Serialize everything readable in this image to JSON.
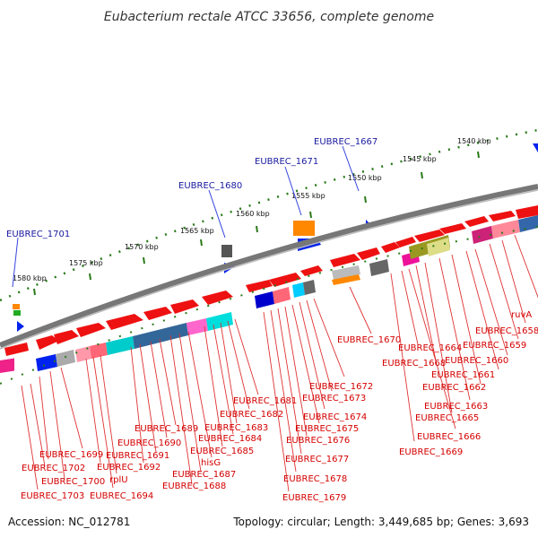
{
  "title": "Eubacterium rectale ATCC 33656, complete genome",
  "accession": "Accession: NC_012781",
  "summary": "Topology: circular; Length: 3,449,685 bp; Genes: 3,693",
  "kbp_ticks": [
    "1540 kbp",
    "1545 kbp",
    "1550 kbp",
    "1555 kbp",
    "1560 kbp",
    "1565 kbp",
    "1570 kbp",
    "1575 kbp",
    "1580 kbp"
  ],
  "top_labels": [
    "EUBREC_1701",
    "EUBREC_1680",
    "EUBREC_1671",
    "EUBREC_1667"
  ],
  "bottom_labels_right": [
    "ruvA",
    "EUBREC_1658",
    "EUBREC_1659",
    "EUBREC_1660",
    "EUBREC_1661",
    "EUBREC_1662",
    "EUBREC_1663",
    "EUBREC_1664",
    "EUBREC_1665",
    "EUBREC_1666",
    "EUBREC_1668",
    "EUBREC_1669",
    "EUBREC_1670"
  ],
  "bottom_labels_mid": [
    "EUBREC_1672",
    "EUBREC_1673",
    "EUBREC_1674",
    "EUBREC_1675",
    "EUBREC_1676",
    "EUBREC_1677",
    "EUBREC_1678",
    "EUBREC_1679",
    "EUBREC_1681",
    "EUBREC_1682",
    "EUBREC_1683",
    "EUBREC_1684",
    "EUBREC_1685",
    "hisG",
    "EUBREC_1687",
    "EUBREC_1688",
    "EUBREC_1689",
    "EUBREC_1690",
    "EUBREC_1691",
    "EUBREC_1692"
  ],
  "bottom_labels_left": [
    "EUBREC_1699",
    "EUBREC_1702",
    "EUBREC_1700",
    "rplU",
    "EUBREC_1694",
    "EUBREC_1703"
  ],
  "colors": {
    "gene_red": "#ee1111",
    "backbone": "#777777",
    "tick_green": "#2a7a1a",
    "label_red": "#d40000",
    "label_blue": "#1a1aa0",
    "blue_gene": "#0022ee",
    "orange_gene": "#ff8800"
  }
}
